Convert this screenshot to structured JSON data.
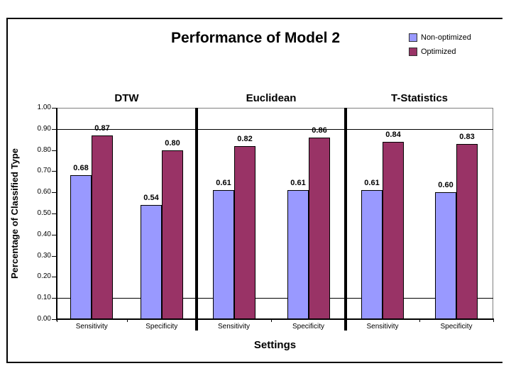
{
  "chart_data": {
    "type": "bar",
    "title": "Performance of Model 2",
    "xlabel": "Settings",
    "ylabel": "Percentage of Classified Type",
    "ylim": [
      0.0,
      1.0
    ],
    "y_ticks": [
      "1.00",
      "0.90",
      "0.80",
      "0.70",
      "0.60",
      "0.50",
      "0.40",
      "0.30",
      "0.20",
      "0.10",
      "0.00"
    ],
    "gridlines_y": [
      0.9,
      0.1
    ],
    "grid": "partial",
    "legend_position": "top-right",
    "legend": [
      {
        "name": "Non-optimized",
        "color": "#9999FF"
      },
      {
        "name": "Optimized",
        "color": "#993366"
      }
    ],
    "bar_border_color": "#000000",
    "value_label_format": "2-decimals",
    "groups": [
      {
        "label": "DTW",
        "categories": [
          "Sensitivity",
          "Specificity"
        ],
        "series": [
          {
            "name": "Non-optimized",
            "values": [
              0.68,
              0.54
            ]
          },
          {
            "name": "Optimized",
            "values": [
              0.87,
              0.8
            ]
          }
        ]
      },
      {
        "label": "Euclidean",
        "categories": [
          "Sensitivity",
          "Specificity"
        ],
        "series": [
          {
            "name": "Non-optimized",
            "values": [
              0.61,
              0.61
            ]
          },
          {
            "name": "Optimized",
            "values": [
              0.82,
              0.86
            ]
          }
        ]
      },
      {
        "label": "T-Statistics",
        "categories": [
          "Sensitivity",
          "Specificity"
        ],
        "series": [
          {
            "name": "Non-optimized",
            "values": [
              0.61,
              0.6
            ]
          },
          {
            "name": "Optimized",
            "values": [
              0.84,
              0.83
            ]
          }
        ]
      }
    ]
  }
}
